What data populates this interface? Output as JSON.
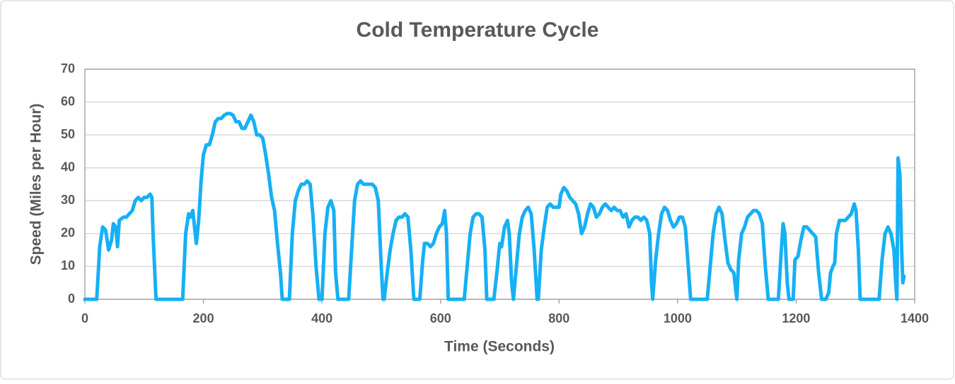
{
  "chart_data": {
    "type": "line",
    "title": "Cold Temperature Cycle",
    "x_label": "Time (Seconds)",
    "y_label": "Speed (Miles per Hour)",
    "xlim": [
      0,
      1400
    ],
    "xticks": [
      0,
      200,
      400,
      600,
      800,
      1000,
      1200,
      1400
    ],
    "ylim": [
      0,
      70
    ],
    "yticks": [
      0,
      10,
      20,
      30,
      40,
      50,
      60,
      70
    ],
    "grid": true,
    "x": [
      0,
      20,
      25,
      30,
      35,
      40,
      45,
      48,
      52,
      55,
      58,
      65,
      70,
      75,
      80,
      85,
      90,
      95,
      100,
      105,
      110,
      113,
      115,
      120,
      165,
      170,
      175,
      178,
      182,
      185,
      188,
      192,
      196,
      200,
      205,
      210,
      215,
      220,
      225,
      230,
      235,
      240,
      245,
      250,
      255,
      260,
      265,
      270,
      275,
      280,
      285,
      290,
      295,
      300,
      305,
      310,
      315,
      320,
      325,
      330,
      333,
      345,
      350,
      355,
      360,
      365,
      370,
      375,
      380,
      385,
      390,
      395,
      400,
      405,
      410,
      415,
      420,
      423,
      427,
      445,
      450,
      455,
      460,
      465,
      470,
      475,
      480,
      485,
      490,
      495,
      500,
      503,
      505,
      510,
      515,
      520,
      525,
      530,
      535,
      540,
      545,
      550,
      555,
      565,
      570,
      573,
      578,
      583,
      588,
      593,
      598,
      603,
      607,
      610,
      613,
      640,
      645,
      650,
      655,
      660,
      665,
      670,
      675,
      678,
      690,
      695,
      700,
      703,
      708,
      713,
      716,
      720,
      723,
      728,
      733,
      738,
      743,
      748,
      753,
      758,
      763,
      765,
      770,
      775,
      780,
      785,
      790,
      795,
      800,
      803,
      808,
      813,
      818,
      823,
      828,
      833,
      838,
      843,
      848,
      853,
      858,
      863,
      868,
      873,
      878,
      883,
      888,
      893,
      898,
      903,
      908,
      913,
      918,
      923,
      928,
      933,
      938,
      943,
      948,
      953,
      956,
      958,
      963,
      968,
      973,
      978,
      983,
      988,
      993,
      998,
      1003,
      1008,
      1013,
      1018,
      1022,
      1050,
      1055,
      1060,
      1065,
      1070,
      1075,
      1080,
      1085,
      1090,
      1095,
      1098,
      1100,
      1103,
      1108,
      1113,
      1118,
      1123,
      1128,
      1133,
      1138,
      1143,
      1148,
      1153,
      1170,
      1175,
      1178,
      1181,
      1185,
      1188,
      1195,
      1198,
      1203,
      1208,
      1213,
      1218,
      1223,
      1228,
      1233,
      1238,
      1243,
      1250,
      1255,
      1258,
      1262,
      1265,
      1268,
      1273,
      1278,
      1283,
      1288,
      1293,
      1298,
      1301,
      1305,
      1308,
      1340,
      1345,
      1350,
      1355,
      1360,
      1365,
      1368,
      1370,
      1372,
      1375,
      1378,
      1380,
      1382
    ],
    "series": [
      {
        "name": "Speed",
        "color": "#16b0f5",
        "values": [
          0,
          0,
          16,
          22,
          21,
          15,
          18,
          23,
          22,
          16,
          24,
          25,
          25,
          26,
          27,
          30,
          31,
          30,
          31,
          31,
          32,
          31,
          20,
          0,
          0,
          20,
          26,
          25,
          27,
          22,
          17,
          24,
          36,
          44,
          47,
          47,
          50,
          54,
          55,
          55,
          56,
          56.5,
          56.5,
          56,
          54,
          54,
          52,
          52,
          54,
          56,
          54,
          50,
          50,
          49,
          44,
          38,
          31,
          27,
          17,
          8,
          0,
          0,
          20,
          30,
          33,
          35,
          35,
          36,
          35,
          25,
          10,
          0,
          0,
          20,
          28,
          30,
          27,
          8,
          0,
          0,
          15,
          30,
          35,
          36,
          35,
          35,
          35,
          35,
          34,
          30,
          10,
          0,
          0,
          8,
          15,
          20,
          24,
          25,
          25,
          26,
          25,
          15,
          0,
          0,
          12,
          17,
          17,
          16,
          17,
          20,
          22,
          23,
          27,
          20,
          0,
          0,
          10,
          20,
          25,
          26,
          26,
          25,
          15,
          0,
          0,
          8,
          17,
          16,
          22,
          24,
          20,
          5,
          0,
          10,
          20,
          25,
          27,
          28,
          26,
          15,
          0,
          0,
          15,
          22,
          28,
          29,
          28,
          28,
          28,
          32,
          34,
          33,
          31,
          30,
          29,
          26,
          20,
          22,
          26,
          29,
          28,
          25,
          26,
          28,
          29,
          28,
          27,
          28,
          27,
          27,
          25,
          26,
          22,
          24,
          25,
          25,
          24,
          25,
          24,
          20,
          5,
          0,
          12,
          20,
          26,
          28,
          27,
          24,
          22,
          23,
          25,
          25,
          22,
          10,
          0,
          0,
          10,
          20,
          26,
          28,
          26,
          18,
          11,
          9,
          8,
          3,
          0,
          12,
          20,
          22,
          25,
          26,
          27,
          27,
          26,
          23,
          10,
          0,
          0,
          15,
          23,
          20,
          5,
          0,
          0,
          12,
          13,
          18,
          22,
          22,
          21,
          20,
          19,
          8,
          0,
          0,
          2,
          8,
          10,
          11,
          20,
          24,
          24,
          24,
          25,
          26,
          29,
          27,
          15,
          0,
          0,
          12,
          20,
          22,
          20,
          15,
          5,
          0,
          43,
          38,
          15,
          5,
          7
        ]
      }
    ]
  }
}
